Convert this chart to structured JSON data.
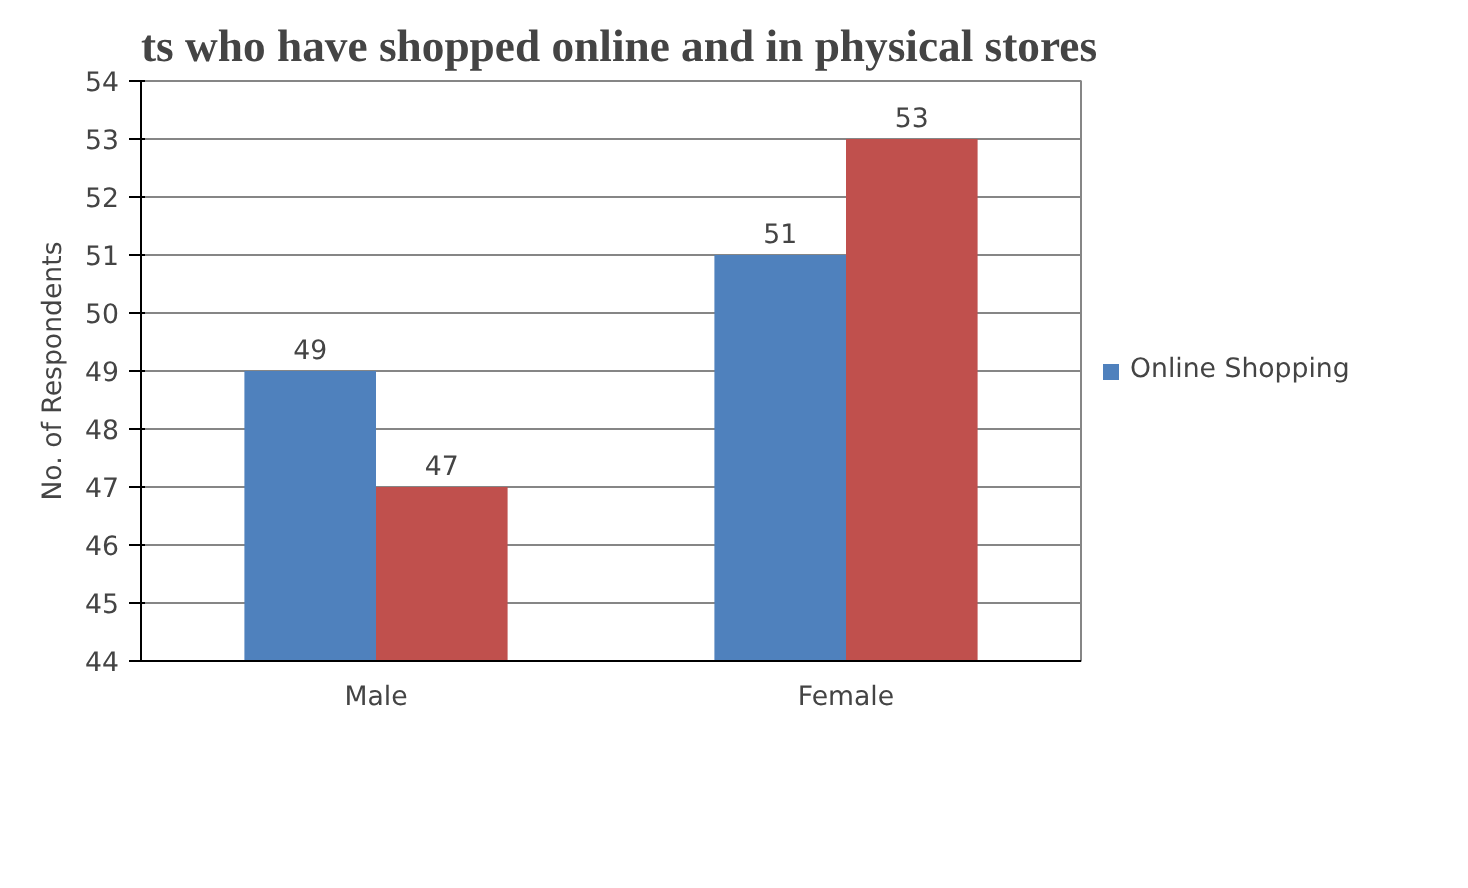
{
  "chart_data": {
    "type": "bar",
    "title": "ts who have shopped online and in physical stores",
    "ylabel": "No. of Respondents",
    "categories": [
      "Male",
      "Female"
    ],
    "series": [
      {
        "name": "Online Shopping",
        "color": "#4f81bd",
        "values": [
          49,
          51
        ]
      },
      {
        "color": "#c0504d",
        "values": [
          47,
          53
        ]
      }
    ],
    "ylim": [
      44,
      54
    ],
    "yticks": [
      44,
      45,
      46,
      47,
      48,
      49,
      50,
      51,
      52,
      53,
      54
    ],
    "grid": "y",
    "legend": "right",
    "data_labels": true
  }
}
